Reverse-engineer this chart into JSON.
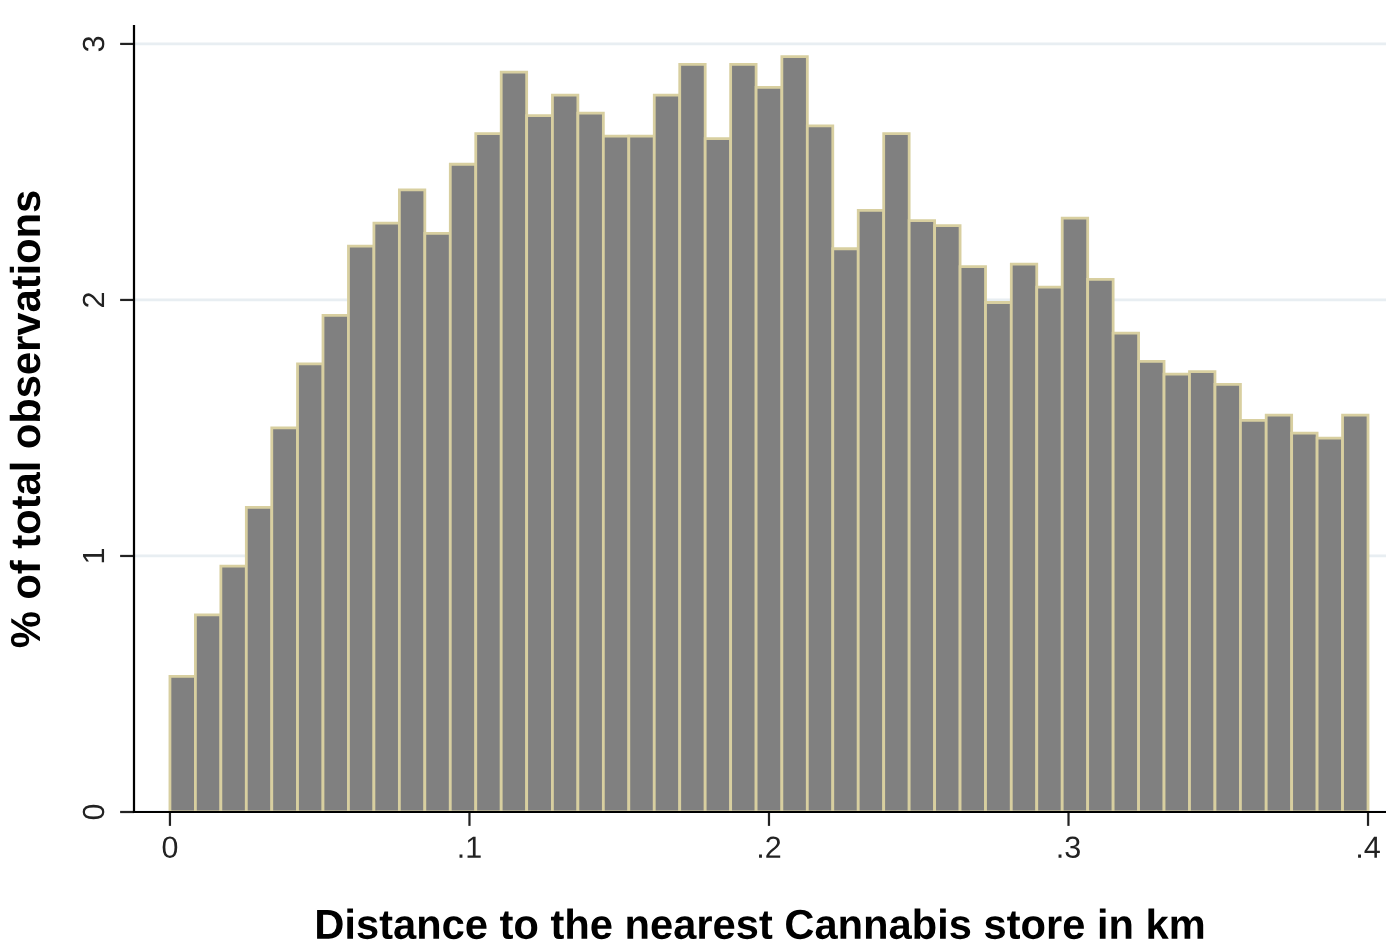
{
  "chart_data": {
    "type": "histogram",
    "xlabel": "Distance to the nearest Cannabis store in km",
    "ylabel": "% of total observations",
    "bins": [
      0,
      0.0085,
      0.017,
      0.0255,
      0.034,
      0.0426,
      0.0511,
      0.0596,
      0.0681,
      0.0766,
      0.0851,
      0.0936,
      0.1021,
      0.1106,
      0.1191,
      0.1277,
      0.1362,
      0.1447,
      0.1532,
      0.1617,
      0.1702,
      0.1787,
      0.1872,
      0.1957,
      0.2043,
      0.2128,
      0.2213,
      0.2298,
      0.2383,
      0.2468,
      0.2553,
      0.2638,
      0.2723,
      0.2809,
      0.2894,
      0.2979,
      0.3064,
      0.3149,
      0.3234,
      0.3319,
      0.3404,
      0.3489,
      0.3574,
      0.366,
      0.3745,
      0.383,
      0.3915,
      0.4
    ],
    "values": [
      0.53,
      0.77,
      0.96,
      1.19,
      1.5,
      1.75,
      1.94,
      2.21,
      2.3,
      2.43,
      2.26,
      2.53,
      2.65,
      2.89,
      2.72,
      2.8,
      2.73,
      2.64,
      2.64,
      2.8,
      2.92,
      2.63,
      2.92,
      2.83,
      2.95,
      2.68,
      2.2,
      2.35,
      2.65,
      2.31,
      2.29,
      2.13,
      1.99,
      2.14,
      2.05,
      2.32,
      2.08,
      1.87,
      1.76,
      1.71,
      1.72,
      1.67,
      1.53,
      1.55,
      1.48,
      1.46,
      1.55
    ],
    "color": "#808080",
    "xlim": [
      -0.012,
      0.406
    ],
    "ylim": [
      0,
      3.07
    ],
    "xticks": [
      0,
      {
        "value": 0.1,
        "label": ".1"
      },
      {
        "value": 0.2,
        "label": ".2"
      },
      {
        "value": 0.3,
        "label": ".3"
      },
      {
        "value": 0.4,
        "label": ".4"
      }
    ],
    "yticks": [
      0,
      1,
      2,
      3
    ],
    "grid": "y"
  }
}
